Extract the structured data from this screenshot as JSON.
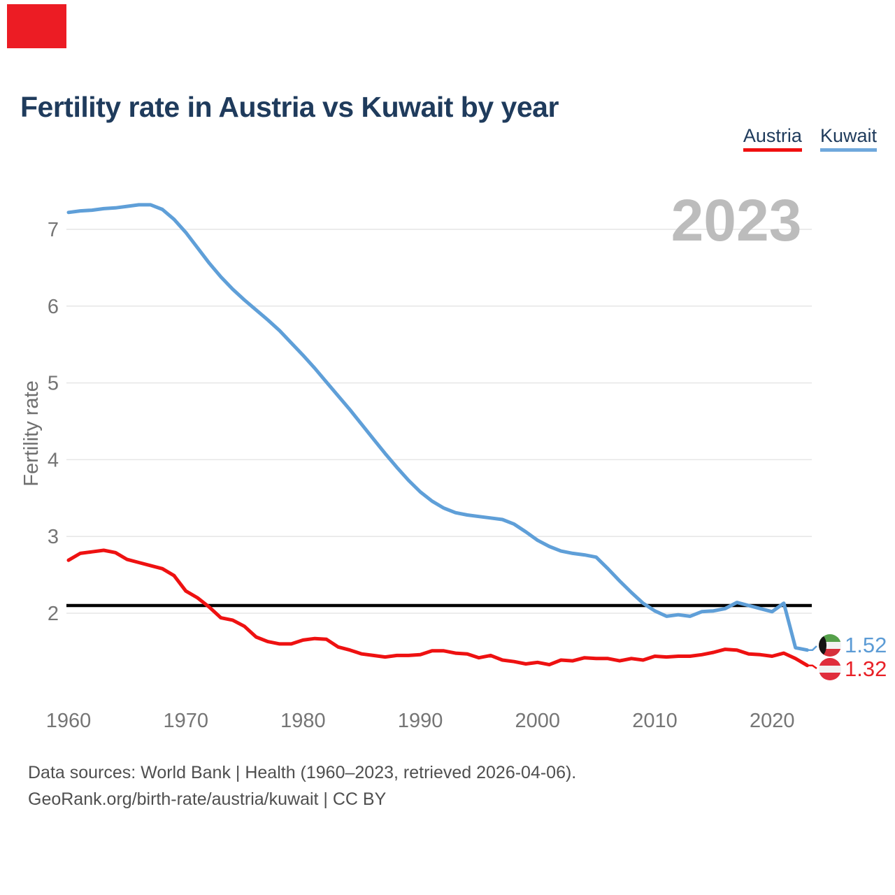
{
  "page": {
    "title": "Fertility rate in Austria vs Kuwait by year",
    "watermark": "2023",
    "corner_mark_color": "#ec1c24",
    "source_line1": "Data sources: World Bank | Health (1960–2023, retrieved 2026-04-06).",
    "source_line2": "GeoRank.org/birth-rate/austria/kuwait | CC BY"
  },
  "legend": [
    {
      "label": "Austria",
      "color": "#f01010"
    },
    {
      "label": "Kuwait",
      "color": "#6fa8dc"
    }
  ],
  "chart_data": {
    "type": "line",
    "title": "Fertility rate in Austria vs Kuwait by year",
    "xlabel": "",
    "ylabel": "Fertility rate",
    "x_ticks": [
      1960,
      1970,
      1980,
      1990,
      2000,
      2010,
      2020
    ],
    "y_ticks": [
      2,
      3,
      4,
      5,
      6,
      7
    ],
    "ylim": [
      1.1,
      7.6
    ],
    "xlim": [
      1960,
      2023
    ],
    "grid": "horizontal",
    "reference_line": {
      "value": 2.1,
      "color": "#000000",
      "meaning": "replacement-level line"
    },
    "x": [
      1960,
      1961,
      1962,
      1963,
      1964,
      1965,
      1966,
      1967,
      1968,
      1969,
      1970,
      1971,
      1972,
      1973,
      1974,
      1975,
      1976,
      1977,
      1978,
      1979,
      1980,
      1981,
      1982,
      1983,
      1984,
      1985,
      1986,
      1987,
      1988,
      1989,
      1990,
      1991,
      1992,
      1993,
      1994,
      1995,
      1996,
      1997,
      1998,
      1999,
      2000,
      2001,
      2002,
      2003,
      2004,
      2005,
      2006,
      2007,
      2008,
      2009,
      2010,
      2011,
      2012,
      2013,
      2014,
      2015,
      2016,
      2017,
      2018,
      2019,
      2020,
      2021,
      2022,
      2023
    ],
    "series": [
      {
        "name": "Austria",
        "color": "#ee1111",
        "values": [
          2.69,
          2.78,
          2.8,
          2.82,
          2.79,
          2.7,
          2.66,
          2.62,
          2.58,
          2.49,
          2.29,
          2.2,
          2.08,
          1.94,
          1.91,
          1.83,
          1.69,
          1.63,
          1.6,
          1.6,
          1.65,
          1.67,
          1.66,
          1.56,
          1.52,
          1.47,
          1.45,
          1.43,
          1.45,
          1.45,
          1.46,
          1.51,
          1.51,
          1.48,
          1.47,
          1.42,
          1.45,
          1.39,
          1.37,
          1.34,
          1.36,
          1.33,
          1.39,
          1.38,
          1.42,
          1.41,
          1.41,
          1.38,
          1.41,
          1.39,
          1.44,
          1.43,
          1.44,
          1.44,
          1.46,
          1.49,
          1.53,
          1.52,
          1.47,
          1.46,
          1.44,
          1.48,
          1.41,
          1.32
        ]
      },
      {
        "name": "Kuwait",
        "color": "#5f9fd8",
        "values": [
          7.22,
          7.24,
          7.25,
          7.27,
          7.28,
          7.3,
          7.32,
          7.32,
          7.26,
          7.13,
          6.96,
          6.76,
          6.56,
          6.38,
          6.22,
          6.08,
          5.95,
          5.82,
          5.68,
          5.52,
          5.36,
          5.19,
          5.01,
          4.83,
          4.65,
          4.46,
          4.27,
          4.08,
          3.9,
          3.73,
          3.58,
          3.46,
          3.37,
          3.31,
          3.28,
          3.26,
          3.24,
          3.22,
          3.16,
          3.06,
          2.95,
          2.87,
          2.81,
          2.78,
          2.76,
          2.73,
          2.58,
          2.42,
          2.27,
          2.13,
          2.03,
          1.96,
          1.98,
          1.96,
          2.02,
          2.03,
          2.06,
          2.14,
          2.1,
          2.06,
          2.02,
          2.13,
          1.55,
          1.52
        ]
      }
    ],
    "end_labels": [
      {
        "series": "Kuwait",
        "value": "1.52",
        "text_color": "#5b9bd5",
        "flag": "kuwait-flag"
      },
      {
        "series": "Austria",
        "value": "1.32",
        "text_color": "#e82127",
        "flag": "austria-flag"
      }
    ],
    "legend_position": "top-right",
    "watermark": "2023"
  }
}
